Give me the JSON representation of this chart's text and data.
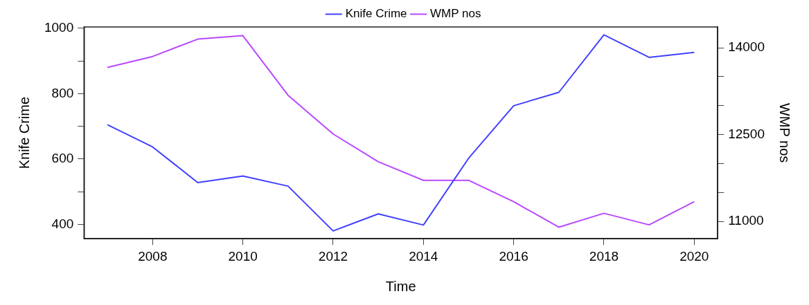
{
  "chart_data": {
    "type": "line",
    "xlabel": "Time",
    "ylabel": "Knife Crime",
    "y2label": "WMP nos",
    "x": [
      2007,
      2008,
      2009,
      2010,
      2011,
      2012,
      2013,
      2014,
      2015,
      2016,
      2017,
      2018,
      2019,
      2020
    ],
    "series": [
      {
        "name": "Knife Crime",
        "color": "#4040ff",
        "values": [
          705,
          637,
          528,
          548,
          517,
          380,
          432,
          398,
          602,
          763,
          804,
          980,
          911,
          926
        ]
      },
      {
        "name": "WMP nos",
        "color": "#b848ff",
        "axis": "y2",
        "values": [
          13660,
          13850,
          14150,
          14210,
          13180,
          12510,
          12030,
          11710,
          11710,
          11340,
          10900,
          11140,
          10940,
          11340
        ]
      }
    ],
    "xlim": [
      2006.48,
      2020.52
    ],
    "xticks": [
      2008,
      2010,
      2012,
      2014,
      2016,
      2018,
      2020
    ],
    "ylim": [
      356,
      1004
    ],
    "yticks": [
      400,
      {
        "value": 500,
        "label": null
      },
      600,
      {
        "value": 700,
        "label": null
      },
      800,
      {
        "value": 900,
        "label": null
      },
      1000
    ],
    "y2lim": [
      10700,
      14360
    ],
    "y2ticks": [
      11000,
      {
        "value": 11500,
        "label": null
      },
      {
        "value": 12000,
        "label": null
      },
      12500,
      {
        "value": 13000,
        "label": null
      },
      {
        "value": 13500,
        "label": null
      },
      14000
    ],
    "grid": false,
    "legend": "top"
  }
}
